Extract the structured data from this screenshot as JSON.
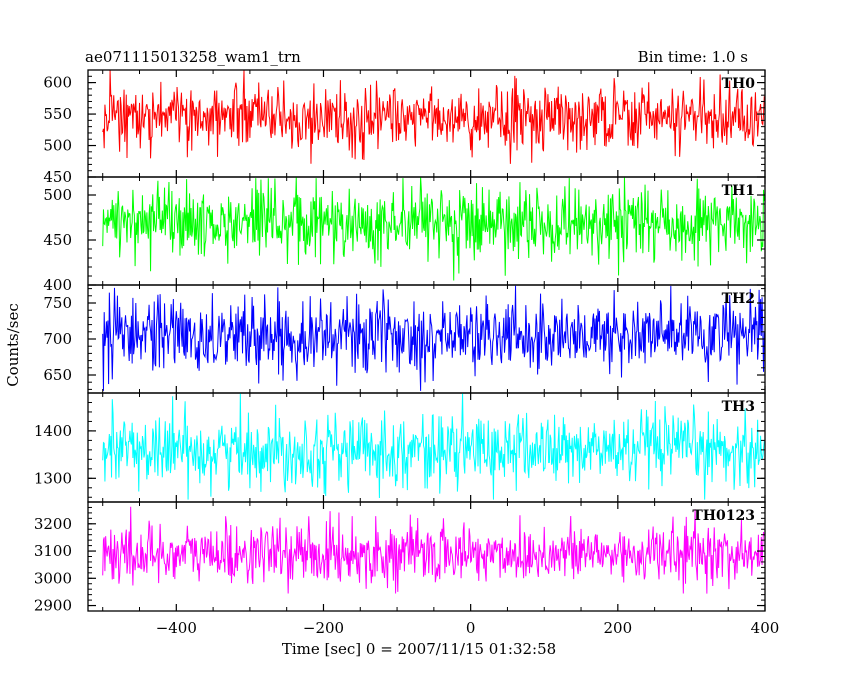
{
  "header": {
    "title": "ae071115013258_wam1_trn",
    "bin_time": "Bin time: 1.0 s"
  },
  "chart_data": {
    "type": "line",
    "xlabel": "Time [sec] 0 = 2007/11/15 01:32:58",
    "ylabel": "Counts/sec",
    "xlim": [
      -520,
      400
    ],
    "x_ticks": [
      -400,
      -200,
      0,
      200,
      400
    ],
    "x_ticklabels": [
      "−400",
      "−200",
      "0",
      "200",
      "400"
    ],
    "x_start": -500,
    "x_end": 399,
    "bin": 1.0,
    "grid": false,
    "panels": [
      {
        "label": "TH0",
        "color": "#ff0000",
        "ylim": [
          450,
          620
        ],
        "yticks": [
          450,
          500,
          550,
          600
        ],
        "yticklabels": [
          "450",
          "500",
          "550",
          "600"
        ],
        "mean": 545,
        "sigma": 25,
        "min": 455,
        "max": 620
      },
      {
        "label": "TH1",
        "color": "#00ff00",
        "ylim": [
          400,
          520
        ],
        "yticks": [
          400,
          450,
          500
        ],
        "yticklabels": [
          "400",
          "450",
          "500"
        ],
        "mean": 468,
        "sigma": 20,
        "min": 405,
        "max": 520
      },
      {
        "label": "TH2",
        "color": "#0000ff",
        "ylim": [
          625,
          775
        ],
        "yticks": [
          650,
          700,
          750
        ],
        "yticklabels": [
          "650",
          "700",
          "750"
        ],
        "mean": 705,
        "sigma": 26,
        "min": 628,
        "max": 775
      },
      {
        "label": "TH3",
        "color": "#00ffff",
        "ylim": [
          1250,
          1480
        ],
        "yticks": [
          1300,
          1400
        ],
        "yticklabels": [
          "1300",
          "1400"
        ],
        "mean": 1360,
        "sigma": 38,
        "min": 1255,
        "max": 1480
      },
      {
        "label": "TH0123",
        "color": "#ff00ff",
        "ylim": [
          2880,
          3280
        ],
        "yticks": [
          2900,
          3000,
          3100,
          3200
        ],
        "yticklabels": [
          "2900",
          "3000",
          "3100",
          "3200"
        ],
        "mean": 3090,
        "sigma": 55,
        "min": 2885,
        "max": 3280
      }
    ]
  }
}
